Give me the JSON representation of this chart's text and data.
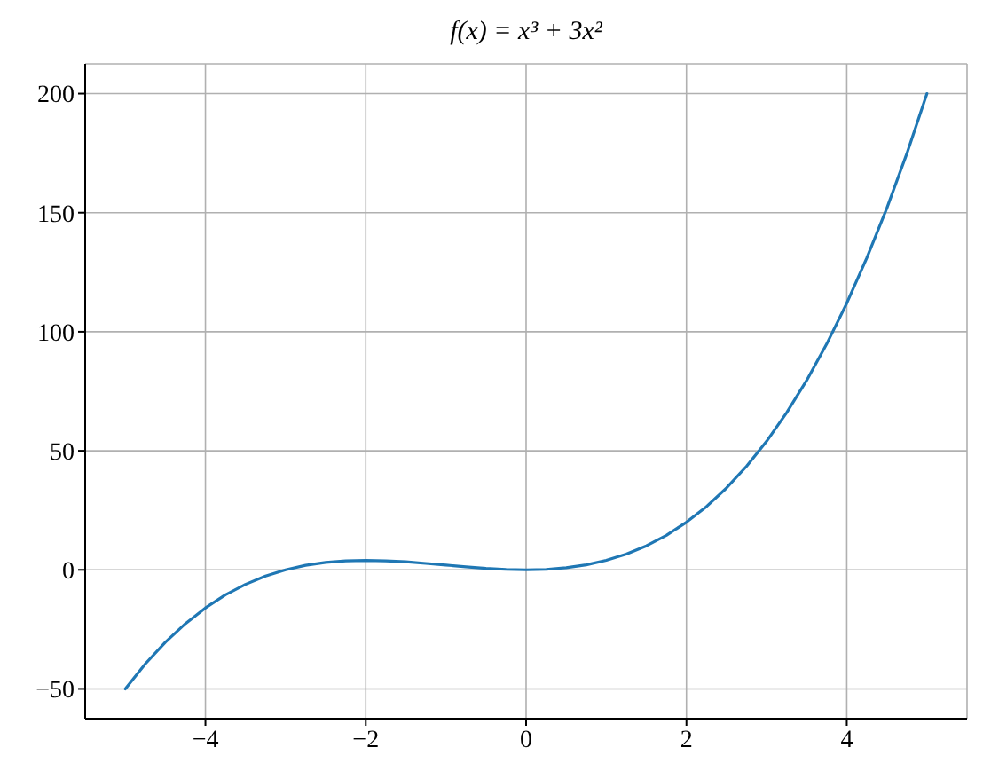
{
  "chart_data": {
    "type": "line",
    "title": "f(x) = x³ + 3x²",
    "x": [
      -5,
      -4.75,
      -4.5,
      -4.25,
      -4,
      -3.75,
      -3.5,
      -3.25,
      -3,
      -2.75,
      -2.5,
      -2.25,
      -2,
      -1.75,
      -1.5,
      -1.25,
      -1,
      -0.75,
      -0.5,
      -0.25,
      0,
      0.25,
      0.5,
      0.75,
      1,
      1.25,
      1.5,
      1.75,
      2,
      2.25,
      2.5,
      2.75,
      3,
      3.25,
      3.5,
      3.75,
      4,
      4.25,
      4.5,
      4.75,
      5
    ],
    "series": [
      {
        "color": "#1f77b4",
        "values": [
          -50,
          -39.5,
          -30.4,
          -22.6,
          -16,
          -10.5,
          -6.1,
          -2.6,
          0,
          1.9,
          3.1,
          3.8,
          4,
          3.8,
          3.4,
          2.7,
          2,
          1.3,
          0.6,
          0.2,
          0,
          0.2,
          0.9,
          2.1,
          4,
          6.6,
          10.1,
          14.5,
          20,
          26.6,
          34.4,
          43.5,
          54,
          66,
          79.6,
          94.9,
          112,
          131,
          151.9,
          174.9,
          200
        ]
      }
    ],
    "xlim": [
      -5.5,
      5.5
    ],
    "ylim": [
      -62.5,
      212.5
    ],
    "xticks": [
      {
        "value": -4,
        "label": "−4"
      },
      {
        "value": -2,
        "label": "−2"
      },
      0,
      2,
      4
    ],
    "yticks": [
      {
        "value": -50,
        "label": "−50"
      },
      0,
      50,
      100,
      150,
      200
    ],
    "grid": true,
    "legend": false,
    "marker": "none",
    "line_style": "solid"
  }
}
